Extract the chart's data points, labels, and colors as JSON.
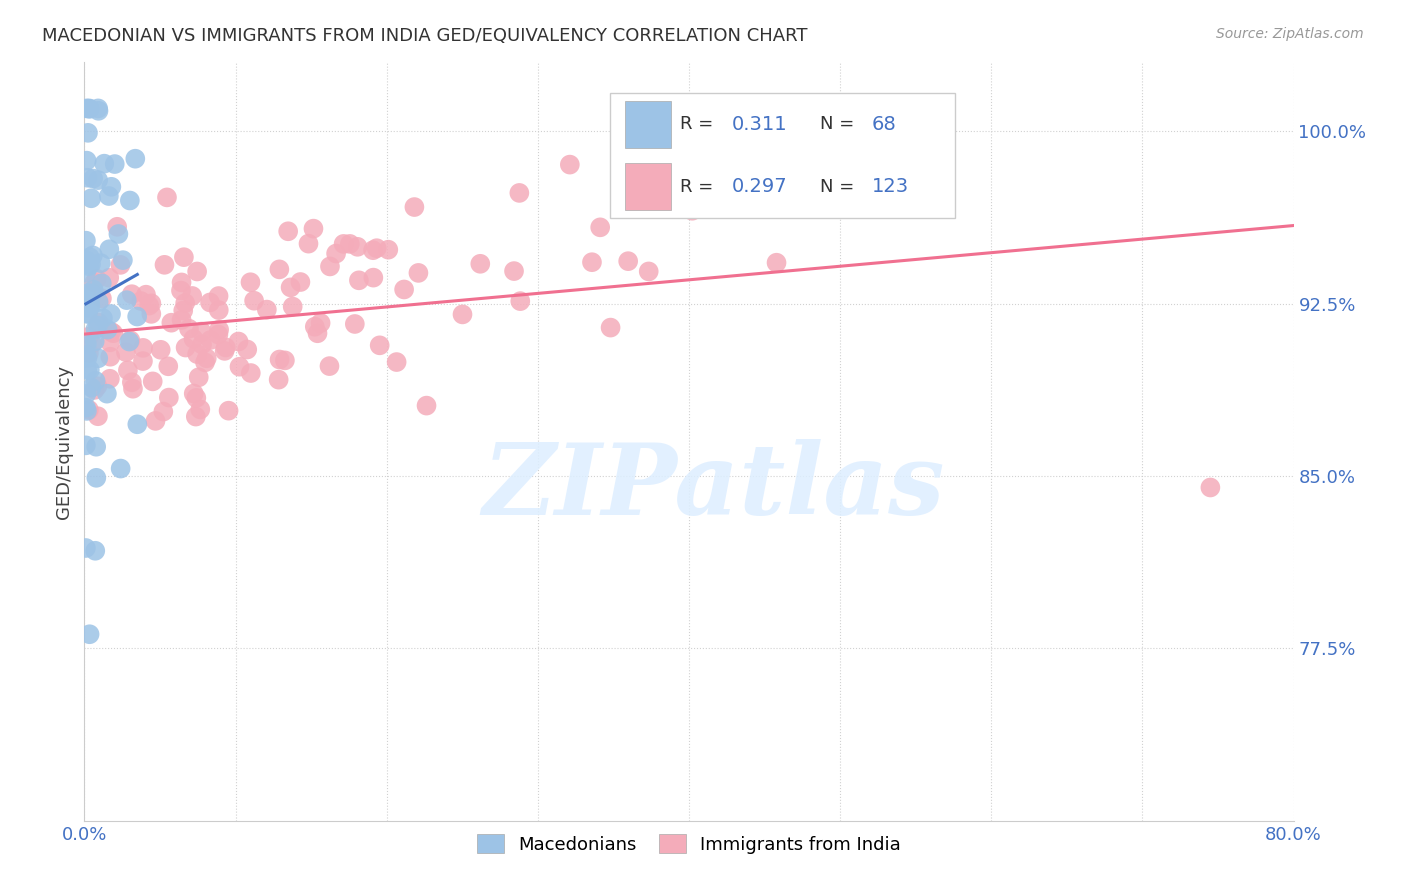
{
  "title": "MACEDONIAN VS IMMIGRANTS FROM INDIA GED/EQUIVALENCY CORRELATION CHART",
  "source": "Source: ZipAtlas.com",
  "ylabel": "GED/Equivalency",
  "ytick_labels": [
    "100.0%",
    "92.5%",
    "85.0%",
    "77.5%"
  ],
  "ytick_positions": [
    1.0,
    0.925,
    0.85,
    0.775
  ],
  "xlim": [
    0.0,
    0.8
  ],
  "ylim": [
    0.7,
    1.03
  ],
  "color_macedonian": "#9dc3e6",
  "color_india": "#f4acba",
  "color_macedonian_line": "#4472c4",
  "color_india_line": "#f07090",
  "color_tick": "#4472c4",
  "background": "#ffffff",
  "watermark_text": "ZIPatlas",
  "legend_r1": "0.311",
  "legend_n1": "68",
  "legend_r2": "0.297",
  "legend_n2": "123"
}
